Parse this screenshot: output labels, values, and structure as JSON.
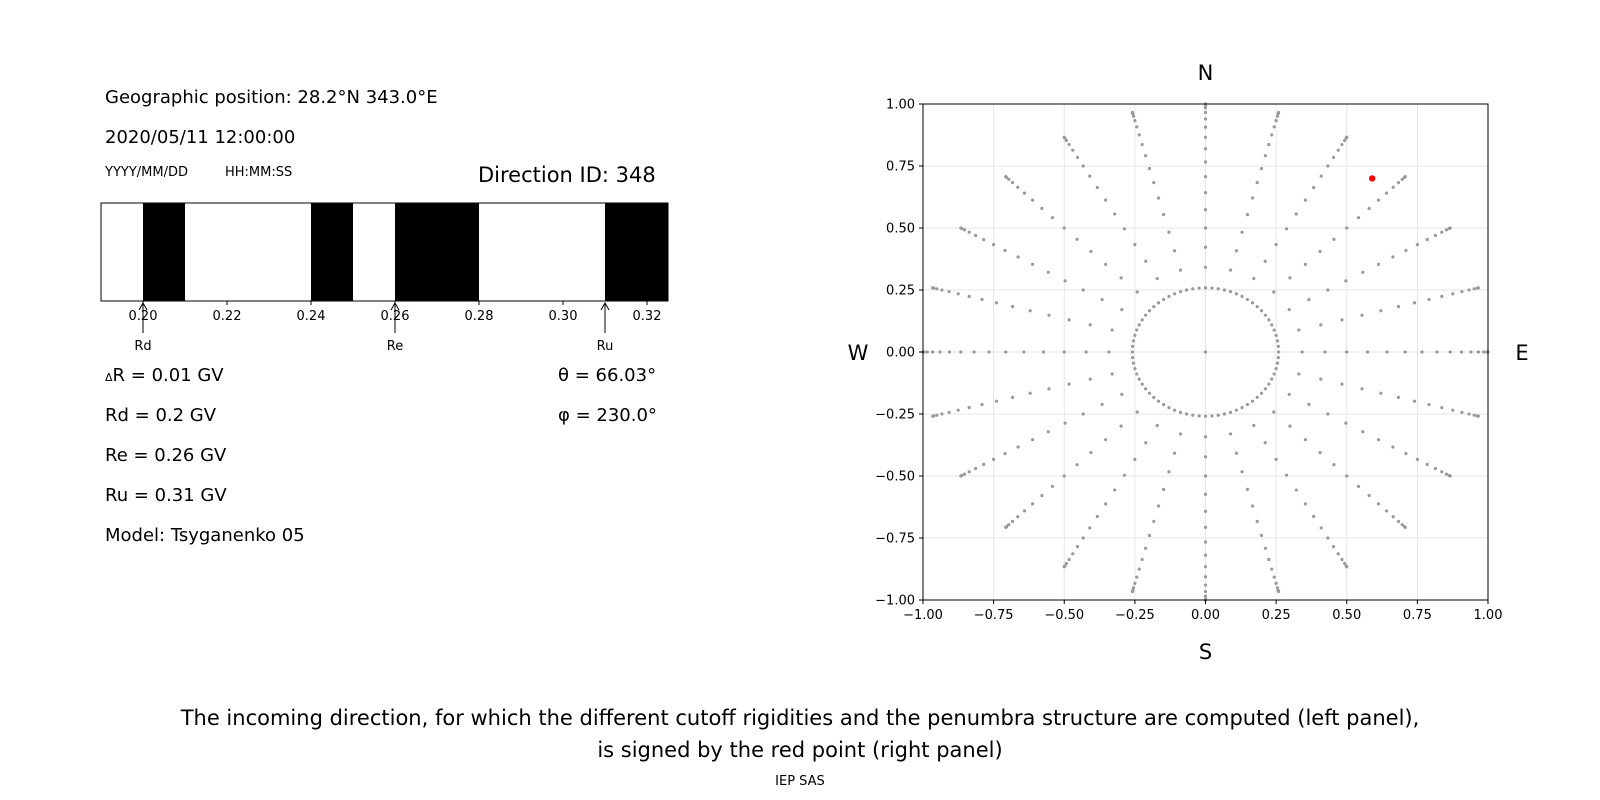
{
  "left_panel": {
    "geo_position": "Geographic position: 28.2°N 343.0°E",
    "datetime": "2020/05/11 12:00:00",
    "date_format_label": "YYYY/MM/DD",
    "time_format_label": "HH:MM:SS",
    "direction_id": "Direction ID: 348",
    "delta_r": "R = 0.01 GV",
    "delta_symbol": "Δ",
    "rd": "Rd = 0.2 GV",
    "re": "Re = 0.26 GV",
    "ru": "Ru = 0.31 GV",
    "model": "Model: Tsyganenko 05",
    "theta": "θ = 66.03°",
    "phi": "φ = 230.0°"
  },
  "chart_data": [
    {
      "type": "penumbra-bar",
      "xlim": [
        0.19,
        0.325
      ],
      "ticks": [
        0.2,
        0.22,
        0.24,
        0.26,
        0.28,
        0.3,
        0.32
      ],
      "tick_labels": [
        "0.20",
        "0.22",
        "0.24",
        "0.26",
        "0.28",
        "0.30",
        "0.32"
      ],
      "forbidden_intervals": [
        [
          0.2,
          0.21
        ],
        [
          0.24,
          0.25
        ],
        [
          0.26,
          0.28
        ],
        [
          0.31,
          0.325
        ]
      ],
      "markers": [
        {
          "label": "Rd",
          "value": 0.2
        },
        {
          "label": "Re",
          "value": 0.26
        },
        {
          "label": "Ru",
          "value": 0.31
        }
      ],
      "colors": {
        "forbidden": "#000000",
        "allowed": "#ffffff"
      }
    },
    {
      "type": "scatter",
      "xlim": [
        -1.0,
        1.0
      ],
      "ylim": [
        -1.0,
        1.0
      ],
      "ticks": [
        -1.0,
        -0.75,
        -0.5,
        -0.25,
        0.0,
        0.25,
        0.5,
        0.75,
        1.0
      ],
      "tick_labels": [
        "−1.00",
        "−0.75",
        "−0.50",
        "−0.25",
        "0.00",
        "0.25",
        "0.50",
        "0.75",
        "1.00"
      ],
      "grid": true,
      "compass": {
        "north": "N",
        "south": "S",
        "west": "W",
        "east": "E"
      },
      "grid_points": {
        "azimuth_step_deg": 15,
        "zenith_step_deg": 5,
        "zenith_max_deg": 90,
        "center_point": true,
        "inner_ring_zenith_deg": 15,
        "inner_ring_azimuth_step_deg": 5,
        "color": "#999999"
      },
      "selected_point": {
        "x": 0.59,
        "y": 0.7,
        "color": "#ff0000"
      }
    }
  ],
  "caption": {
    "line1": "The incoming direction, for which the different cutoff rigidities and the penumbra structure are computed (left panel),",
    "line2": "is signed by the red point (right panel)"
  },
  "credit": "IEP SAS"
}
